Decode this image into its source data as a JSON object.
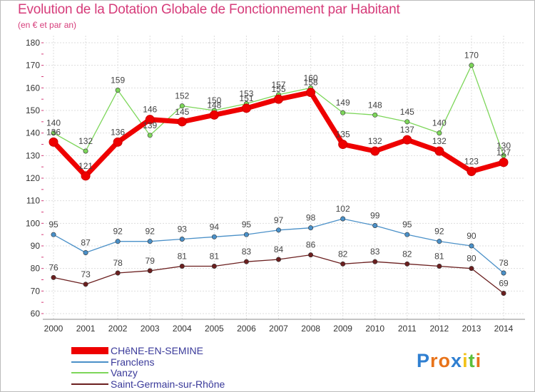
{
  "chart_data": {
    "type": "line",
    "title": "Evolution de la Dotation Globale de Fonctionnement par Habitant",
    "subtitle": "(en € et par an)",
    "x": [
      "2000",
      "2001",
      "2002",
      "2003",
      "2004",
      "2005",
      "2006",
      "2007",
      "2008",
      "2009",
      "2010",
      "2011",
      "2012",
      "2013",
      "2014"
    ],
    "ylim": [
      60,
      180
    ],
    "yticks": [
      60,
      70,
      80,
      90,
      100,
      110,
      120,
      130,
      140,
      150,
      160,
      170,
      180
    ],
    "grid": true,
    "legend_position": "bottom-left",
    "series": [
      {
        "name": "CHêNE-EN-SEMINE",
        "color": "#ee0000",
        "values": [
          136,
          121,
          136,
          146,
          145,
          148,
          151,
          155,
          158,
          135,
          132,
          137,
          132,
          123,
          127
        ]
      },
      {
        "name": "Franclens",
        "color": "#4a90c8",
        "values": [
          95,
          87,
          92,
          92,
          93,
          94,
          95,
          97,
          98,
          102,
          99,
          95,
          92,
          90,
          78
        ]
      },
      {
        "name": "Vanzy",
        "color": "#7dd65a",
        "values": [
          140,
          132,
          159,
          139,
          152,
          150,
          153,
          157,
          160,
          149,
          148,
          145,
          140,
          170,
          130
        ]
      },
      {
        "name": "Saint-Germain-sur-Rhône",
        "color": "#6b1f1f",
        "values": [
          76,
          73,
          78,
          79,
          81,
          81,
          83,
          84,
          86,
          82,
          83,
          82,
          81,
          80,
          69
        ]
      }
    ]
  },
  "branding": {
    "logo_letters": [
      "P",
      "r",
      "o",
      "x",
      "i",
      "t",
      "i"
    ],
    "logo_colors": [
      "#2f7fd1",
      "#e8731a",
      "#e8731a",
      "#2f7fd1",
      "#f2c21a",
      "#5bbf3a",
      "#e8731a"
    ]
  }
}
